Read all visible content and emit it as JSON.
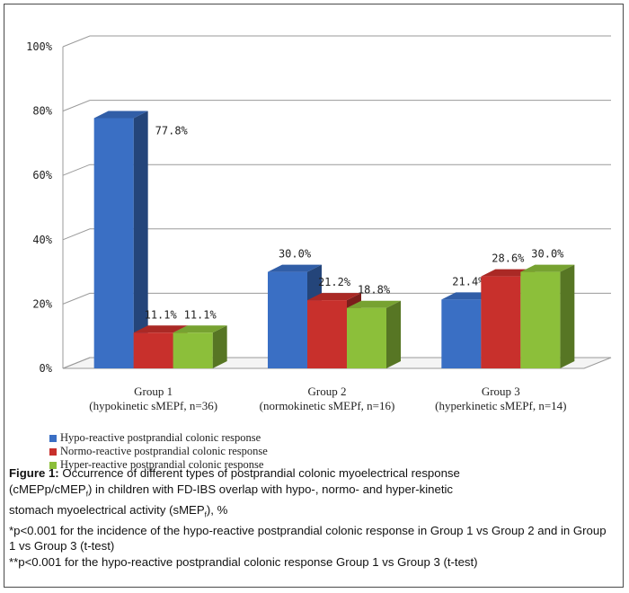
{
  "chart_data": {
    "type": "bar",
    "categories": [
      {
        "line1": "Group 1",
        "line2": "(hypokinetic sMEPf, n=36)"
      },
      {
        "line1": "Group 2",
        "line2": "(normokinetic sMEPf, n=16)"
      },
      {
        "line1": "Group 3",
        "line2": "(hyperkinetic sMEPf, n=14)"
      }
    ],
    "series": [
      {
        "name": "Hypo-reactive postprandial colonic response",
        "color": "#3a6fc4",
        "values": [
          77.8,
          30.0,
          21.4
        ],
        "labels": [
          "77.8%",
          "30.0%",
          "21.4%"
        ]
      },
      {
        "name": "Normo-reactive postprandial colonic response",
        "color": "#c8302c",
        "values": [
          11.1,
          21.2,
          28.6
        ],
        "labels": [
          "11.1%",
          "21.2%",
          "28.6%"
        ]
      },
      {
        "name": "Hyper-reactive postprandial colonic response",
        "color": "#8cbf3a",
        "values": [
          11.1,
          18.8,
          30.0
        ],
        "labels": [
          "11.1%",
          "18.8%",
          "30.0%"
        ]
      }
    ],
    "yticks": [
      "0%",
      "20%",
      "40%",
      "60%",
      "80%",
      "100%"
    ],
    "ylim": [
      0,
      100
    ],
    "grid": true,
    "legend_position": "bottom-left"
  },
  "caption": {
    "figure_label": "Figure 1:",
    "line1": " Occurrence of different types of postprandial colonic myoelectrical response",
    "line2a": "(cMEPp/cMEP",
    "line2sub": "f",
    "line2b": ") in children with FD-IBS overlap with hypo-, normo- and hyper-kinetic",
    "line3a": "stomach myoelectrical activity (sMEP",
    "line3sub": "f",
    "line3b": "), %",
    "note1": "*p<0.001 for the incidence of the hypo-reactive postprandial colonic response in Group 1 vs Group 2 and in Group 1 vs Group 3 (t-test)",
    "note2": "**p<0.001 for the hypo-reactive postprandial colonic response Group 1 vs Group 3 (t-test)"
  }
}
